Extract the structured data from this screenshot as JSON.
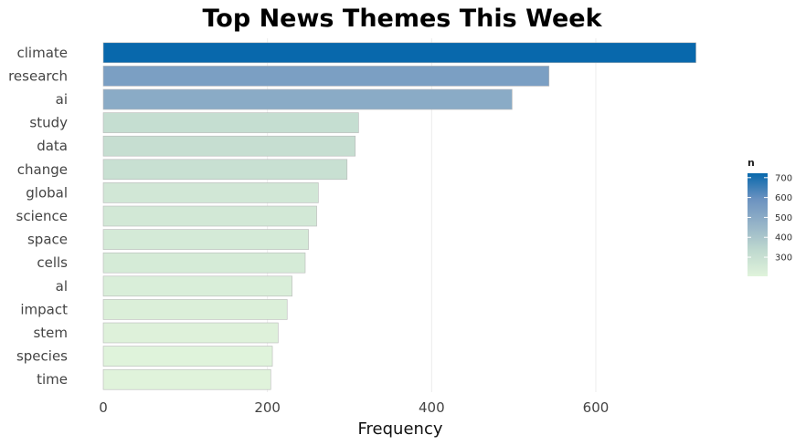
{
  "chart_data": {
    "type": "bar",
    "orientation": "horizontal",
    "title": "Top News Themes This Week",
    "xlabel": "Frequency",
    "ylabel": "",
    "xlim": [
      0,
      720
    ],
    "xticks": [
      0,
      200,
      400,
      600
    ],
    "grid": true,
    "categories": [
      "climate",
      "research",
      "ai",
      "study",
      "data",
      "change",
      "global",
      "science",
      "space",
      "cells",
      "al",
      "impact",
      "stem",
      "species",
      "time"
    ],
    "values": [
      722,
      543,
      498,
      311,
      307,
      297,
      262,
      260,
      250,
      246,
      230,
      224,
      213,
      206,
      204
    ],
    "legend": {
      "title": "n",
      "placement": "right",
      "ticks": [
        300,
        400,
        500,
        600,
        700
      ],
      "range": [
        204,
        722
      ],
      "colors": [
        "#e0f3db",
        "#bfd9cf",
        "#96b4c8",
        "#6b92c0",
        "#0868ac"
      ]
    }
  }
}
